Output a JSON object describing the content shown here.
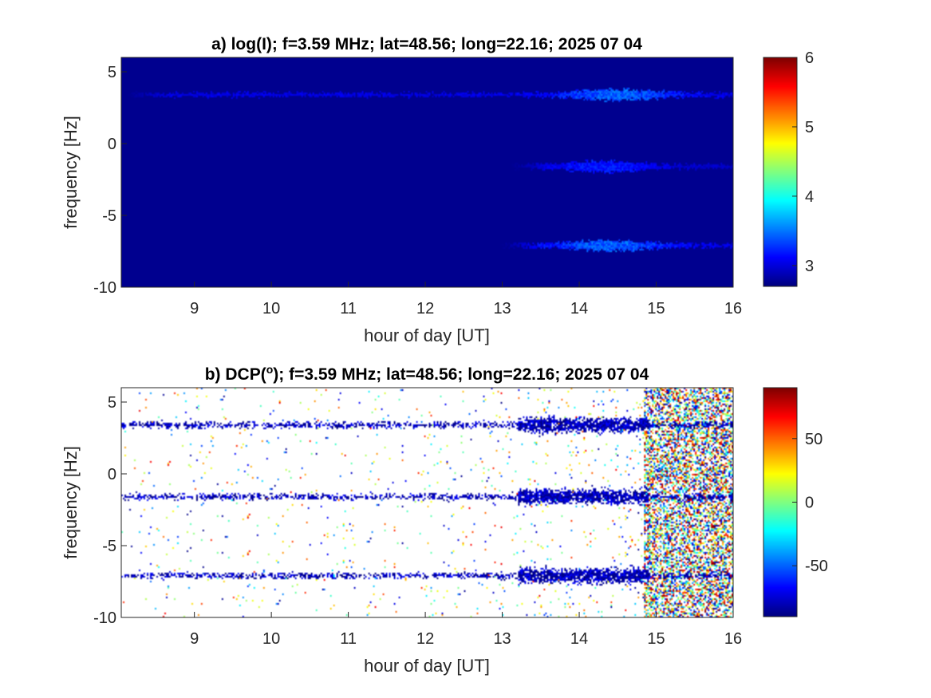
{
  "chart_data": [
    {
      "type": "heatmap",
      "title": "a) log(I); f=3.59 MHz;  lat=48.56; long=22.16; 2025 07 04",
      "xlabel": "hour of day [UT]",
      "ylabel": "frequency [Hz]",
      "xlim": [
        8.05,
        16.0
      ],
      "ylim": [
        -10,
        6
      ],
      "xticks": [
        9,
        10,
        11,
        12,
        13,
        14,
        15,
        16
      ],
      "yticks": [
        -10,
        -5,
        0,
        5
      ],
      "colormap": "jet",
      "background_color": "#00008F",
      "clim": [
        2.7,
        6
      ],
      "colorbar_ticks": [
        3,
        4,
        5,
        6
      ],
      "bands": [
        {
          "frequency": 3.4,
          "start_hour": 8.05,
          "end_hour": 16.0,
          "peak_hour": 14.5,
          "peak_value": 3.6
        },
        {
          "frequency": -1.6,
          "start_hour": 13.0,
          "end_hour": 16.0,
          "peak_hour": 14.3,
          "peak_value": 3.3
        },
        {
          "frequency": -7.1,
          "start_hour": 12.9,
          "end_hour": 16.0,
          "peak_hour": 14.4,
          "peak_value": 3.6
        }
      ]
    },
    {
      "type": "heatmap",
      "title": "b) DCP(°); f=3.59 MHz;  lat=48.56; long=22.16; 2025 07 04",
      "title_main": "b) DCP(",
      "title_sup": "o",
      "title_rest": "); f=3.59 MHz;  lat=48.56; long=22.16; 2025 07 04",
      "xlabel": "hour of day [UT]",
      "ylabel": "frequency [Hz]",
      "xlim": [
        8.05,
        16.0
      ],
      "ylim": [
        -10,
        6
      ],
      "xticks": [
        9,
        10,
        11,
        12,
        13,
        14,
        15,
        16
      ],
      "yticks": [
        -10,
        -5,
        0,
        5
      ],
      "colormap": "jet",
      "background_color": "#FFFFFF",
      "clim": [
        -90,
        90
      ],
      "colorbar_ticks": [
        -50,
        0,
        50
      ],
      "noisy_region_start_hour": 14.85,
      "bands": [
        {
          "frequency": 3.4,
          "start_hour": 8.05,
          "end_hour": 16.0,
          "value": -80
        },
        {
          "frequency": -1.6,
          "start_hour": 8.05,
          "end_hour": 16.0,
          "value": -80
        },
        {
          "frequency": -7.1,
          "start_hour": 8.05,
          "end_hour": 16.0,
          "value": -80
        }
      ]
    }
  ]
}
